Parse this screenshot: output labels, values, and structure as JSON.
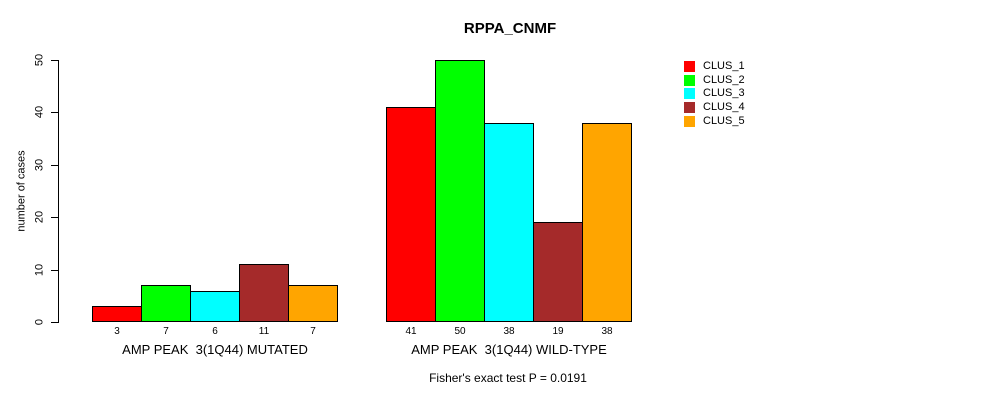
{
  "chart_data": {
    "type": "bar",
    "title": "RPPA_CNMF",
    "ylabel": "number of cases",
    "ylim": [
      0,
      50
    ],
    "yticks": [
      0,
      10,
      20,
      30,
      40,
      50
    ],
    "grid": false,
    "legend_position": "right",
    "series": [
      {
        "name": "CLUS_1",
        "color": "#FF0000"
      },
      {
        "name": "CLUS_2",
        "color": "#00FF00"
      },
      {
        "name": "CLUS_3",
        "color": "#00FFFF"
      },
      {
        "name": "CLUS_4",
        "color": "#A52A2A"
      },
      {
        "name": "CLUS_5",
        "color": "#FFA500"
      }
    ],
    "groups": [
      {
        "label": "AMP PEAK  3(1Q44) MUTATED",
        "values": [
          3,
          7,
          6,
          11,
          7
        ]
      },
      {
        "label": "AMP PEAK  3(1Q44) WILD-TYPE",
        "values": [
          41,
          50,
          38,
          19,
          38
        ]
      }
    ],
    "bar_value_labels_shown": true,
    "annotation": "Fisher's exact test P = 0.0191"
  }
}
